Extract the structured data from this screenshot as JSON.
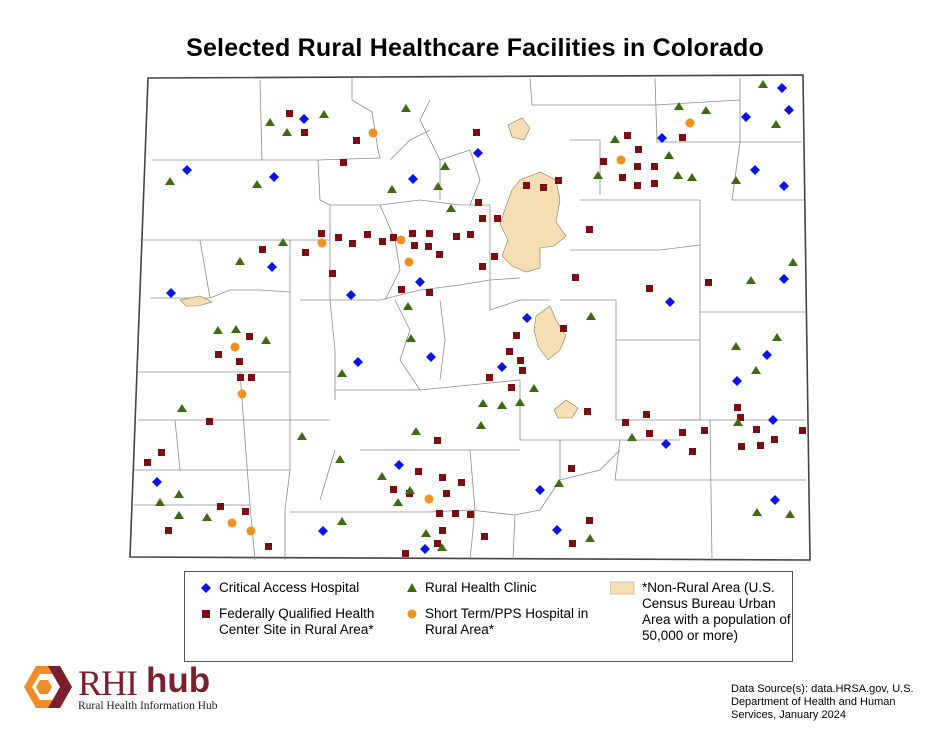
{
  "title": "Selected Rural Healthcare Facilities in Colorado",
  "colors": {
    "critical_access": "#0a14e6",
    "fqhc": "#7a0f12",
    "rhc": "#3e6b12",
    "short_term": "#f0901e",
    "non_rural": "#f5deb3",
    "boundary": "#7f7f7f"
  },
  "legend": {
    "critical_access": "Critical Access Hospital",
    "rhc": "Rural Health Clinic",
    "non_rural": "*Non-Rural Area (U.S. Census Bureau Urban Area with a population of 50,000 or more)",
    "fqhc": "Federally Qualified Health Center Site in Rural Area*",
    "short_term": "Short Term/PPS Hospital in Rural Area*"
  },
  "logo": {
    "name_a": "RHI",
    "name_b": "hub",
    "subtitle": "Rural Health Information Hub"
  },
  "source": "Data Source(s): data.HRSA.gov, U.S. Department of Health and Human Services, January 2024"
}
